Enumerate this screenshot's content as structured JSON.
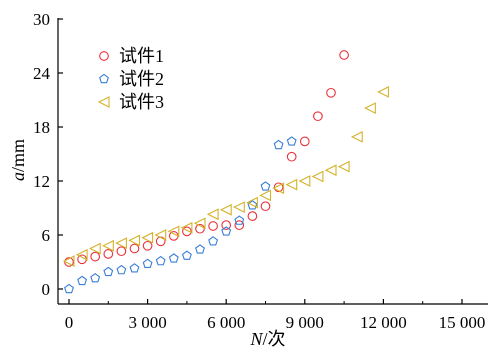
{
  "chart_data": {
    "type": "scatter",
    "title": "",
    "xlabel": {
      "italic": "N",
      "rest": "/次"
    },
    "ylabel": {
      "italic": "a",
      "rest": "/mm"
    },
    "xlim": [
      -500,
      15000
    ],
    "ylim": [
      -1,
      30
    ],
    "x_ticks": [
      0,
      3000,
      6000,
      9000,
      12000,
      15000
    ],
    "x_tick_labels": [
      "0",
      "3 000",
      "6 000",
      "9 000",
      "12 000",
      "15 000"
    ],
    "y_ticks": [
      0,
      6,
      12,
      18,
      24,
      30
    ],
    "y_tick_labels": [
      "0",
      "6",
      "12",
      "18",
      "24",
      "30"
    ],
    "grid": false,
    "legend_position": "top-left",
    "series": [
      {
        "name": "试件1",
        "marker": "circle",
        "color": "#e8323c",
        "x": [
          0,
          500,
          1000,
          1500,
          2000,
          2500,
          3000,
          3500,
          4000,
          4500,
          5000,
          5500,
          6000,
          6500,
          7000,
          7500,
          8000,
          8500,
          9000,
          9500,
          10000,
          10500
        ],
        "y": [
          3.0,
          3.3,
          3.6,
          3.9,
          4.2,
          4.5,
          4.8,
          5.3,
          5.9,
          6.4,
          6.7,
          7.0,
          7.1,
          7.1,
          8.1,
          9.2,
          11.3,
          14.7,
          16.4,
          19.2,
          21.8,
          26.0
        ]
      },
      {
        "name": "试件2",
        "marker": "pentagon",
        "color": "#3a7fd5",
        "x": [
          0,
          500,
          1000,
          1500,
          2000,
          2500,
          3000,
          3500,
          4000,
          4500,
          5000,
          5500,
          6000,
          6500,
          7000,
          7500,
          8000,
          8500
        ],
        "y": [
          0,
          0.9,
          1.2,
          1.9,
          2.1,
          2.3,
          2.8,
          3.1,
          3.4,
          3.7,
          4.4,
          5.3,
          6.4,
          7.6,
          9.3,
          11.4,
          16.0,
          16.4
        ]
      },
      {
        "name": "试件3",
        "marker": "triangle-left",
        "color": "#d4b22a",
        "x": [
          0,
          500,
          1000,
          1500,
          2000,
          2500,
          3000,
          3500,
          4000,
          4500,
          5000,
          5500,
          6000,
          6500,
          7000,
          7500,
          8000,
          8500,
          9000,
          9500,
          10000,
          10500,
          11000,
          11500,
          12000
        ],
        "y": [
          3.1,
          3.8,
          4.5,
          4.8,
          5.1,
          5.4,
          5.7,
          6.0,
          6.4,
          6.8,
          7.3,
          8.3,
          8.8,
          9.1,
          9.6,
          10.4,
          11.2,
          11.6,
          12.0,
          12.5,
          13.2,
          13.6,
          16.9,
          20.1,
          21.9
        ]
      }
    ]
  }
}
